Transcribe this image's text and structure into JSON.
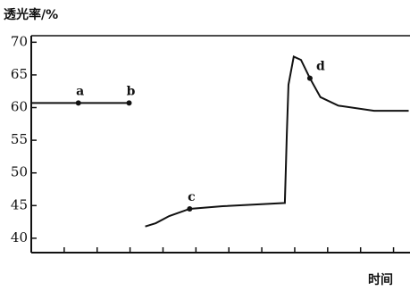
{
  "chart_data": {
    "type": "line",
    "y_label": "透光率/%",
    "x_label": "时间",
    "ylim": [
      37.8,
      71
    ],
    "yticks": [
      40,
      45,
      50,
      55,
      60,
      65,
      70
    ],
    "xlim": [
      0,
      11.5
    ],
    "xticks": [
      0,
      1,
      2,
      3,
      4,
      5,
      6,
      7,
      8,
      9,
      10,
      11
    ],
    "x": [
      0,
      1.43,
      2.97,
      null,
      3.46,
      3.78,
      4.19,
      4.81,
      5.81,
      7.7,
      7.76,
      7.81,
      7.97,
      8.19,
      8.46,
      8.78,
      9.32,
      10.41,
      11.46
    ],
    "series": [
      {
        "color": "#111111",
        "values": [
          60.7,
          60.7,
          60.7,
          null,
          41.8,
          42.3,
          43.4,
          44.5,
          44.9,
          45.4,
          56,
          63.5,
          67.8,
          67.3,
          64.5,
          61.6,
          60.3,
          59.5,
          59.5
        ]
      }
    ],
    "points": [
      {
        "label": "a",
        "x": 1.43,
        "y": 60.7
      },
      {
        "label": "b",
        "x": 2.97,
        "y": 60.7
      },
      {
        "label": "c",
        "x": 4.81,
        "y": 44.5
      },
      {
        "label": "d",
        "x": 8.46,
        "y": 64.5
      }
    ]
  }
}
